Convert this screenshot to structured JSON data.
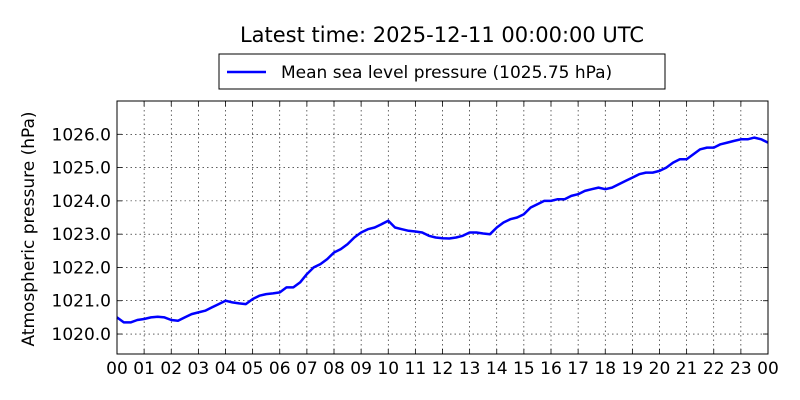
{
  "chart_data": {
    "type": "line",
    "title": "Latest time: 2025-12-11 00:00:00 UTC",
    "xlabel": "",
    "ylabel": "Atmospheric pressure (hPa)",
    "x_tick_labels": [
      "00",
      "01",
      "02",
      "03",
      "04",
      "05",
      "06",
      "07",
      "08",
      "09",
      "10",
      "11",
      "12",
      "13",
      "14",
      "15",
      "16",
      "17",
      "18",
      "19",
      "20",
      "21",
      "22",
      "23",
      "00"
    ],
    "y_tick_labels": [
      "1020.0",
      "1021.0",
      "1022.0",
      "1023.0",
      "1024.0",
      "1025.0",
      "1026.0"
    ],
    "y_ticks": [
      1020.0,
      1021.0,
      1022.0,
      1023.0,
      1024.0,
      1025.0,
      1026.0
    ],
    "xlim": [
      0,
      24
    ],
    "ylim": [
      1019.4,
      1027.0
    ],
    "grid": true,
    "legend_position": "top-center",
    "series": [
      {
        "name": "Mean sea level pressure (1025.75 hPa)",
        "color": "#0000ff",
        "x": [
          0,
          0.25,
          0.5,
          0.75,
          1,
          1.25,
          1.5,
          1.75,
          2,
          2.25,
          2.5,
          2.75,
          3,
          3.25,
          3.5,
          3.75,
          4,
          4.25,
          4.5,
          4.75,
          5,
          5.25,
          5.5,
          5.75,
          6,
          6.25,
          6.5,
          6.75,
          7,
          7.25,
          7.5,
          7.75,
          8,
          8.25,
          8.5,
          8.75,
          9,
          9.25,
          9.5,
          9.75,
          10,
          10.25,
          10.5,
          10.75,
          11,
          11.25,
          11.5,
          11.75,
          12,
          12.25,
          12.5,
          12.75,
          13,
          13.25,
          13.5,
          13.75,
          14,
          14.25,
          14.5,
          14.75,
          15,
          15.25,
          15.5,
          15.75,
          16,
          16.25,
          16.5,
          16.75,
          17,
          17.25,
          17.5,
          17.75,
          18,
          18.25,
          18.5,
          18.75,
          19,
          19.25,
          19.5,
          19.75,
          20,
          20.25,
          20.5,
          20.75,
          21,
          21.25,
          21.5,
          21.75,
          22,
          22.25,
          22.5,
          22.75,
          23,
          23.25,
          23.5,
          23.75,
          24
        ],
        "y": [
          1020.5,
          1020.35,
          1020.35,
          1020.42,
          1020.45,
          1020.5,
          1020.52,
          1020.5,
          1020.42,
          1020.4,
          1020.5,
          1020.6,
          1020.65,
          1020.7,
          1020.8,
          1020.9,
          1021.0,
          1020.95,
          1020.92,
          1020.9,
          1021.05,
          1021.15,
          1021.2,
          1021.22,
          1021.25,
          1021.4,
          1021.4,
          1021.55,
          1021.8,
          1022.0,
          1022.1,
          1022.25,
          1022.45,
          1022.55,
          1022.7,
          1022.9,
          1023.05,
          1023.15,
          1023.2,
          1023.3,
          1023.4,
          1023.2,
          1023.15,
          1023.1,
          1023.08,
          1023.05,
          1022.95,
          1022.9,
          1022.88,
          1022.87,
          1022.9,
          1022.95,
          1023.05,
          1023.05,
          1023.02,
          1023.0,
          1023.2,
          1023.35,
          1023.45,
          1023.5,
          1023.6,
          1023.8,
          1023.9,
          1024.0,
          1024.0,
          1024.05,
          1024.05,
          1024.15,
          1024.2,
          1024.3,
          1024.35,
          1024.4,
          1024.35,
          1024.4,
          1024.5,
          1024.6,
          1024.7,
          1024.8,
          1024.85,
          1024.85,
          1024.9,
          1025.0,
          1025.15,
          1025.25,
          1025.25,
          1025.4,
          1025.55,
          1025.6,
          1025.6,
          1025.7,
          1025.75,
          1025.8,
          1025.85,
          1025.85,
          1025.9,
          1025.85,
          1025.75
        ]
      }
    ]
  }
}
